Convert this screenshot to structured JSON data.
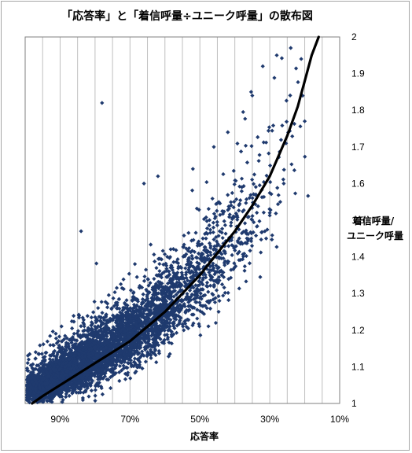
{
  "chart_data": {
    "type": "scatter",
    "title": "「応答率」と「着信呼量÷ユニーク呼量」の散布図",
    "xlabel": "応答率",
    "ylabel_line1": "着信呼量/",
    "ylabel_line2": "ユニーク呼量",
    "x_reversed": true,
    "xlim": [
      1.0,
      0.1
    ],
    "ylim": [
      1.0,
      2.0
    ],
    "x_ticks": [
      0.9,
      0.7,
      0.5,
      0.3,
      0.1
    ],
    "x_tick_labels": [
      "90%",
      "70%",
      "50%",
      "30%",
      "10%"
    ],
    "y_ticks": [
      1,
      1.1,
      1.2,
      1.3,
      1.4,
      1.5,
      1.6,
      1.7,
      1.8,
      1.9,
      2
    ],
    "y_tick_labels": [
      "1",
      "1.1",
      "1.2",
      "1.3",
      "1.4",
      "1.5",
      "1.6",
      "1.7",
      "1.8",
      "1.9",
      "2"
    ],
    "y_axis_side": "right",
    "grid": "vertical",
    "marker": "diamond",
    "marker_color": "#1f3a6e",
    "curve_color": "#000000",
    "curve": {
      "x": [
        0.98,
        0.95,
        0.9,
        0.85,
        0.8,
        0.75,
        0.7,
        0.65,
        0.6,
        0.55,
        0.5,
        0.45,
        0.4,
        0.35,
        0.3,
        0.25,
        0.22,
        0.2,
        0.18,
        0.16
      ],
      "y": [
        1.0,
        1.02,
        1.05,
        1.08,
        1.11,
        1.14,
        1.17,
        1.21,
        1.25,
        1.3,
        1.35,
        1.41,
        1.47,
        1.54,
        1.62,
        1.73,
        1.81,
        1.88,
        1.95,
        2.0
      ]
    },
    "point_clusters": [
      {
        "x": 0.96,
        "y": 1.03,
        "sx": 0.03,
        "sy": 0.025,
        "n": 400
      },
      {
        "x": 0.91,
        "y": 1.06,
        "sx": 0.04,
        "sy": 0.035,
        "n": 700
      },
      {
        "x": 0.85,
        "y": 1.09,
        "sx": 0.045,
        "sy": 0.045,
        "n": 800
      },
      {
        "x": 0.78,
        "y": 1.13,
        "sx": 0.045,
        "sy": 0.05,
        "n": 700
      },
      {
        "x": 0.71,
        "y": 1.17,
        "sx": 0.045,
        "sy": 0.055,
        "n": 600
      },
      {
        "x": 0.64,
        "y": 1.22,
        "sx": 0.045,
        "sy": 0.06,
        "n": 450
      },
      {
        "x": 0.57,
        "y": 1.28,
        "sx": 0.045,
        "sy": 0.065,
        "n": 320
      },
      {
        "x": 0.5,
        "y": 1.34,
        "sx": 0.045,
        "sy": 0.07,
        "n": 220
      },
      {
        "x": 0.43,
        "y": 1.42,
        "sx": 0.045,
        "sy": 0.08,
        "n": 150
      },
      {
        "x": 0.36,
        "y": 1.5,
        "sx": 0.045,
        "sy": 0.1,
        "n": 90
      },
      {
        "x": 0.3,
        "y": 1.64,
        "sx": 0.04,
        "sy": 0.12,
        "n": 40
      },
      {
        "x": 0.24,
        "y": 1.8,
        "sx": 0.03,
        "sy": 0.1,
        "n": 10
      }
    ],
    "outliers": [
      [
        0.24,
        1.97
      ],
      [
        0.21,
        1.94
      ],
      [
        0.28,
        1.95
      ],
      [
        0.32,
        1.92
      ],
      [
        0.2,
        1.77
      ],
      [
        0.35,
        1.84
      ],
      [
        0.78,
        1.82
      ],
      [
        0.52,
        1.64
      ],
      [
        0.26,
        1.6
      ],
      [
        0.27,
        1.55
      ],
      [
        0.66,
        1.6
      ],
      [
        0.42,
        1.74
      ],
      [
        0.84,
        1.47
      ],
      [
        0.3,
        1.52
      ],
      [
        0.99,
        1.12
      ],
      [
        0.97,
        1.14
      ],
      [
        0.62,
        1.62
      ],
      [
        0.46,
        1.7
      ]
    ]
  }
}
